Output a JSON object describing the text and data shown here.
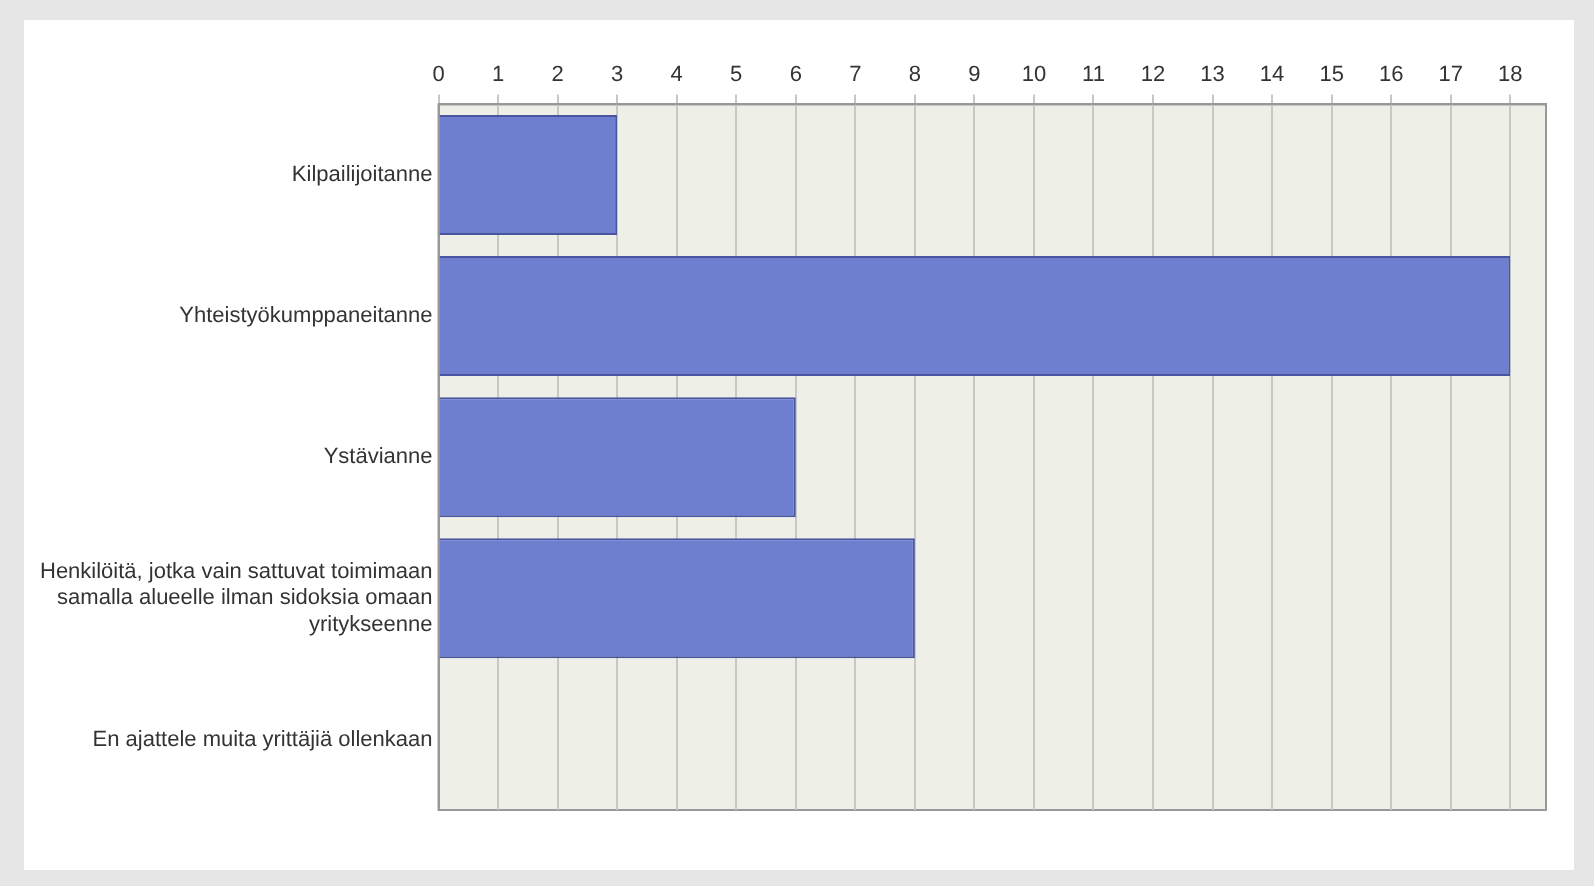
{
  "chart_data": {
    "type": "bar",
    "orientation": "horizontal",
    "categories": [
      "Kilpailijoitanne",
      "Yhteistyökumppaneitanne",
      "Ystävianne",
      "Henkilöitä, jotka vain sattuvat toimimaan samalla alueelle ilman sidoksia omaan yritykseenne",
      "En ajattele muita yrittäjiä ollenkaan"
    ],
    "values": [
      3,
      18,
      6,
      8,
      0
    ],
    "color": "#6f7fcf",
    "xlim": [
      0,
      18.6
    ],
    "xticks": [
      0,
      1,
      2,
      3,
      4,
      5,
      6,
      7,
      8,
      9,
      10,
      11,
      12,
      13,
      14,
      15,
      16,
      17,
      18
    ],
    "grid": "x",
    "legend": false
  }
}
